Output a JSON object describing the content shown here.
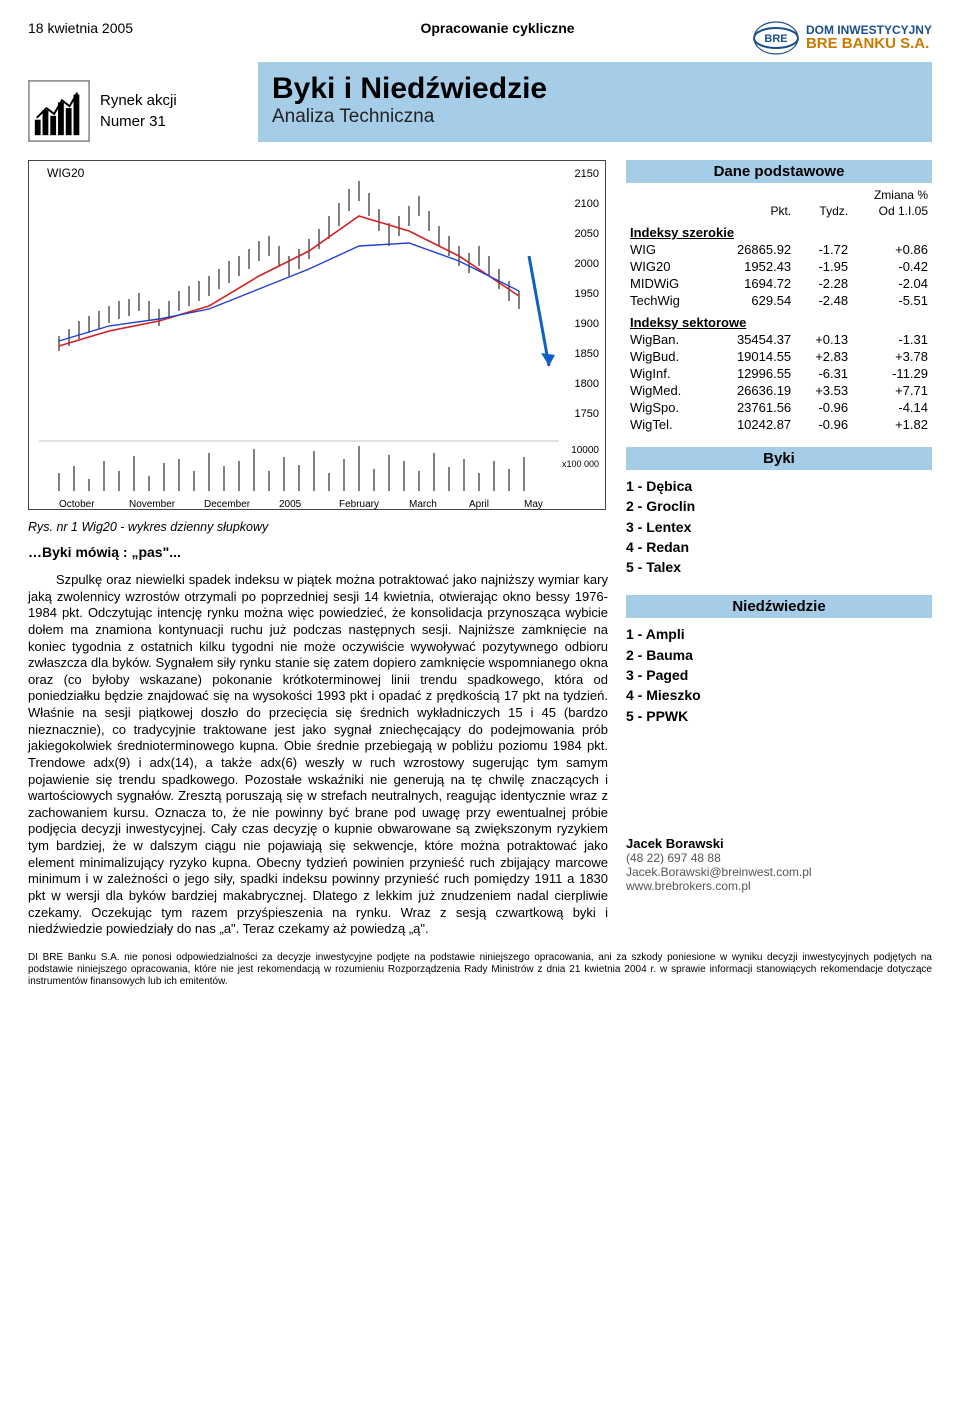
{
  "meta": {
    "date": "18 kwietnia 2005",
    "periodic_label": "Opracowanie cykliczne",
    "section": "Rynek akcji",
    "issue": "Numer 31",
    "title": "Byki i Niedźwiedzie",
    "subtitle": "Analiza Techniczna",
    "brand_line1": "DOM INWESTYCYJNY",
    "brand_line2": "BRE BANKU S.A."
  },
  "chart": {
    "label": "WIG20",
    "caption": "Rys. nr 1  Wig20 - wykres dzienny słupkowy",
    "y_ticks": [
      2150,
      2100,
      2050,
      2000,
      1950,
      1900,
      1850,
      1800,
      1750
    ],
    "vol_ticks": [
      "10000",
      "x100 000"
    ],
    "x_ticks": [
      "October",
      "November",
      "December",
      "2005",
      "February",
      "March",
      "April",
      "May"
    ],
    "price_open": 1870,
    "price_peak": 2120,
    "price_close": 1925,
    "colors": {
      "bars": "#000000",
      "ma_red": "#d42020",
      "ma_blue": "#2040d0",
      "arrow": "#1060c0",
      "border": "#444444"
    }
  },
  "quote": "…Byki mówią : „pas\"...",
  "body_text": "Szpulkę oraz niewielki spadek indeksu w piątek można potraktować jako najniższy wymiar kary jaką zwolennicy wzrostów otrzymali po poprzedniej sesji 14 kwietnia, otwierając okno bessy 1976-1984 pkt. Odczytując intencję rynku można więc powiedzieć, że konsolidacja przynosząca wybicie dołem ma znamiona kontynuacji ruchu już podczas następnych sesji. Najniższe zamknięcie na koniec tygodnia z ostatnich kilku tygodni nie może oczywiście wywoływać pozytywnego odbioru zwłaszcza dla byków. Sygnałem siły rynku stanie się zatem dopiero zamknięcie wspomnianego okna oraz (co byłoby wskazane) pokonanie krótkoterminowej linii trendu spadkowego, która od poniedziałku będzie znajdować się na wysokości 1993 pkt i opadać z prędkością 17 pkt na tydzień. Właśnie na sesji piątkowej doszło do przecięcia się średnich wykładniczych 15 i 45 (bardzo nieznacznie), co tradycyjnie traktowane jest jako sygnał zniechęcający do podejmowania prób jakiegokolwiek średnioterminowego kupna. Obie średnie przebiegają w pobliżu poziomu 1984 pkt. Trendowe adx(9) i adx(14), a także adx(6) weszły w ruch wzrostowy sugerując tym samym pojawienie się trendu spadkowego. Pozostałe wskaźniki nie generują na tę chwilę znaczących i wartościowych sygnałów. Zresztą poruszają się w strefach neutralnych, reagując identycznie wraz z zachowaniem kursu. Oznacza to, że nie powinny być brane pod uwagę przy ewentualnej próbie podjęcia decyzji inwestycyjnej. Cały czas decyzję o kupnie obwarowane są zwiększonym ryzykiem tym bardziej, że w dalszym ciągu nie pojawiają się sekwencje, które można potraktować jako element minimalizujący ryzyko kupna. Obecny tydzień powinien przynieść ruch zbijający marcowe minimum i w zależności o jego siły, spadki indeksu powinny przynieść ruch pomiędzy 1911 a 1830 pkt w wersji  dla byków bardziej makabrycznej. Dlatego z lekkim już znudzeniem nadal cierpliwie czekamy. Oczekując tym razem przyśpieszenia na rynku. Wraz z sesją czwartkową byki i niedźwiedzie powiedziały do nas „a\". Teraz czekamy aż powiedzą „ą\".",
  "data_panel": {
    "title": "Dane podstawowe",
    "col_change": "Zmiana %",
    "col_pkt": "Pkt.",
    "col_tydz": "Tydz.",
    "col_od": "Od 1.I.05",
    "broad_header": "Indeksy szerokie",
    "broad": [
      {
        "n": "WIG",
        "p": "26865.92",
        "t": "-1.72",
        "o": "+0.86"
      },
      {
        "n": "WIG20",
        "p": "1952.43",
        "t": "-1.95",
        "o": "-0.42"
      },
      {
        "n": "MIDWiG",
        "p": "1694.72",
        "t": "-2.28",
        "o": "-2.04"
      },
      {
        "n": "TechWig",
        "p": "629.54",
        "t": "-2.48",
        "o": "-5.51"
      }
    ],
    "sector_header": "Indeksy sektorowe",
    "sector": [
      {
        "n": "WigBan.",
        "p": "35454.37",
        "t": "+0.13",
        "o": "-1.31"
      },
      {
        "n": "WigBud.",
        "p": "19014.55",
        "t": "+2.83",
        "o": "+3.78"
      },
      {
        "n": "WigInf.",
        "p": "12996.55",
        "t": "-6.31",
        "o": "-11.29"
      },
      {
        "n": "WigMed.",
        "p": "26636.19",
        "t": "+3.53",
        "o": "+7.71"
      },
      {
        "n": "WigSpo.",
        "p": "23761.56",
        "t": "-0.96",
        "o": "-4.14"
      },
      {
        "n": "WigTel.",
        "p": "10242.87",
        "t": "-0.96",
        "o": "+1.82"
      }
    ]
  },
  "bulls": {
    "title": "Byki",
    "items": [
      "1 - Dębica",
      "2 - Groclin",
      "3 - Lentex",
      "4 - Redan",
      "5 - Talex"
    ]
  },
  "bears": {
    "title": "Niedźwiedzie",
    "items": [
      "1 - Ampli",
      "2 - Bauma",
      "3 - Paged",
      "4 - Mieszko",
      "5 - PPWK"
    ]
  },
  "contact": {
    "name": "Jacek Borawski",
    "phone": "(48 22) 697 48 88",
    "email": "Jacek.Borawski@breinwest.com.pl",
    "site": "www.brebrokers.com.pl"
  },
  "disclaimer": "DI BRE Banku S.A. nie ponosi odpowiedzialności za decyzje inwestycyjne podjęte na podstawie niniejszego opracowania, ani za szkody poniesione w wyniku decyzji inwestycyjnych podjętych na podstawie niniejszego opracowania, które nie jest rekomendacją w rozumieniu Rozporządzenia Rady Ministrów z dnia 21 kwietnia 2004 r. w sprawie informacji stanowiących rekomendacje dotyczące instrumentów finansowych lub ich emitentów."
}
